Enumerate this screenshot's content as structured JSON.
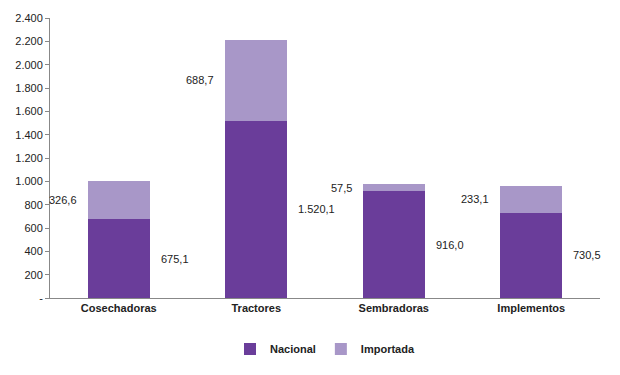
{
  "chart_data": {
    "type": "bar",
    "stacked": true,
    "data_labels": true,
    "grid": false,
    "legend": "bottom",
    "categories": [
      "Cosechadoras",
      "Tractores",
      "Sembradoras",
      "Implementos"
    ],
    "series": [
      {
        "name": "Nacional",
        "color": "#6a3d9a",
        "values": [
          675.1,
          1520.1,
          916.0,
          730.5
        ],
        "value_labels": [
          "675,1",
          "1.520,1",
          "916,0",
          "730,5"
        ]
      },
      {
        "name": "Importada",
        "color": "#a897c8",
        "values": [
          326.6,
          688.7,
          57.5,
          233.1
        ],
        "value_labels": [
          "326,6",
          "688,7",
          "57,5",
          "233,1"
        ]
      }
    ],
    "ylim": [
      0,
      2400
    ],
    "yticks": [
      {
        "value": 0,
        "label": "-"
      },
      200,
      400,
      600,
      800,
      {
        "value": 1000,
        "label": "1.000"
      },
      {
        "value": 1200,
        "label": "1.200"
      },
      {
        "value": 1400,
        "label": "1.400"
      },
      {
        "value": 1600,
        "label": "1.600"
      },
      {
        "value": 1800,
        "label": "1.800"
      },
      {
        "value": 2000,
        "label": "2.000"
      },
      {
        "value": 2200,
        "label": "2.200"
      },
      {
        "value": 2400,
        "label": "2.400"
      }
    ]
  }
}
